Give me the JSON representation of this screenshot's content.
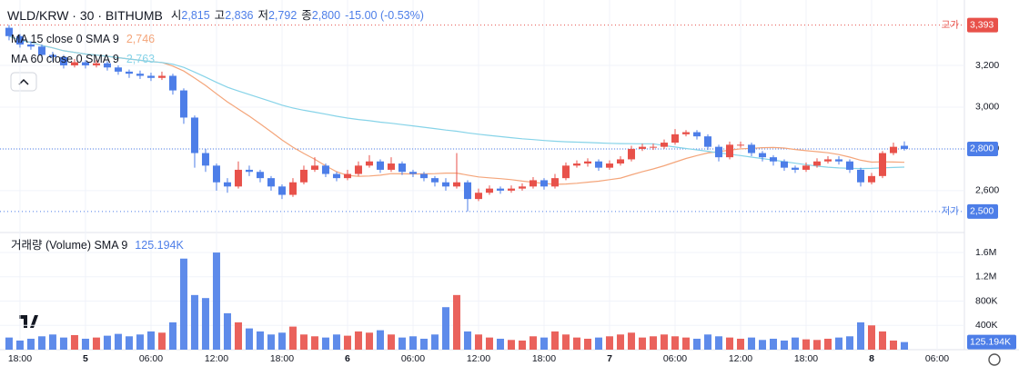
{
  "chart_data": {
    "type": "candlestick",
    "title": "WLD/KRW · 30 · BITHUMB",
    "header": [
      {
        "label": "시",
        "value": "2,815"
      },
      {
        "label": "고",
        "value": "2,836"
      },
      {
        "label": "저",
        "value": "2,792"
      },
      {
        "label": "종",
        "value": "2,800"
      }
    ],
    "change": "-15.00 (-0.53%)",
    "up_color": "#e8514a",
    "down_color": "#4d7ee8",
    "candles": {
      "open": [
        3380,
        3340,
        3300,
        3290,
        3250,
        3240,
        3200,
        3215,
        3200,
        3210,
        3190,
        3170,
        3160,
        3150,
        3140,
        3150,
        3080,
        2950,
        2780,
        2720,
        2640,
        2620,
        2700,
        2690,
        2660,
        2620,
        2580,
        2640,
        2700,
        2720,
        2680,
        2660,
        2680,
        2720,
        2740,
        2700,
        2730,
        2690,
        2680,
        2660,
        2640,
        2620,
        2640,
        2560,
        2590,
        2610,
        2600,
        2610,
        2620,
        2650,
        2620,
        2660,
        2720,
        2730,
        2740,
        2710,
        2730,
        2750,
        2800,
        2810,
        2810,
        2830,
        2870,
        2880,
        2860,
        2810,
        2760,
        2820,
        2820,
        2780,
        2760,
        2740,
        2710,
        2700,
        2720,
        2740,
        2750,
        2740,
        2700,
        2640,
        2670,
        2780,
        2815
      ],
      "high": [
        3393,
        3350,
        3315,
        3300,
        3265,
        3250,
        3230,
        3225,
        3225,
        3220,
        3200,
        3180,
        3175,
        3165,
        3170,
        3160,
        3090,
        2960,
        2800,
        2730,
        2660,
        2740,
        2720,
        2700,
        2670,
        2630,
        2660,
        2720,
        2760,
        2730,
        2690,
        2700,
        2740,
        2770,
        2750,
        2760,
        2740,
        2700,
        2690,
        2670,
        2660,
        2780,
        2650,
        2610,
        2625,
        2620,
        2625,
        2635,
        2665,
        2660,
        2680,
        2735,
        2745,
        2755,
        2750,
        2745,
        2765,
        2815,
        2825,
        2825,
        2845,
        2895,
        2890,
        2890,
        2870,
        2820,
        2835,
        2835,
        2830,
        2790,
        2770,
        2750,
        2720,
        2735,
        2755,
        2765,
        2765,
        2750,
        2710,
        2685,
        2790,
        2830,
        2836
      ],
      "low": [
        3320,
        3285,
        3275,
        3235,
        3220,
        3185,
        3190,
        3185,
        3190,
        3175,
        3155,
        3140,
        3135,
        3125,
        3130,
        3060,
        2920,
        2710,
        2690,
        2600,
        2590,
        2610,
        2670,
        2640,
        2600,
        2560,
        2570,
        2630,
        2690,
        2665,
        2645,
        2650,
        2670,
        2710,
        2685,
        2690,
        2675,
        2665,
        2645,
        2620,
        2600,
        2610,
        2500,
        2550,
        2580,
        2585,
        2590,
        2600,
        2610,
        2605,
        2610,
        2650,
        2710,
        2715,
        2695,
        2700,
        2720,
        2740,
        2790,
        2795,
        2800,
        2820,
        2860,
        2845,
        2795,
        2740,
        2750,
        2805,
        2765,
        2740,
        2720,
        2695,
        2685,
        2690,
        2710,
        2730,
        2725,
        2685,
        2620,
        2630,
        2660,
        2770,
        2792
      ],
      "close": [
        3340,
        3300,
        3290,
        3250,
        3240,
        3200,
        3215,
        3200,
        3210,
        3190,
        3170,
        3160,
        3150,
        3140,
        3150,
        3080,
        2950,
        2780,
        2720,
        2640,
        2620,
        2700,
        2690,
        2660,
        2620,
        2580,
        2640,
        2700,
        2720,
        2680,
        2660,
        2680,
        2720,
        2740,
        2700,
        2730,
        2690,
        2680,
        2660,
        2640,
        2620,
        2640,
        2560,
        2590,
        2610,
        2600,
        2610,
        2620,
        2650,
        2620,
        2660,
        2720,
        2730,
        2740,
        2710,
        2730,
        2750,
        2800,
        2810,
        2810,
        2830,
        2870,
        2880,
        2860,
        2810,
        2760,
        2820,
        2820,
        2780,
        2760,
        2740,
        2710,
        2700,
        2720,
        2740,
        2750,
        2740,
        2700,
        2640,
        2670,
        2780,
        2810,
        2800
      ]
    },
    "ma": [
      {
        "name": "MA 15 close 0 SMA 9",
        "period": 15,
        "last": "2,746",
        "color": "#f4a57a"
      },
      {
        "name": "MA 60 close 0 SMA 9",
        "period": 60,
        "last": "2,763",
        "color": "#86d3e8"
      }
    ],
    "ylim": [
      2404,
      3513
    ],
    "yticks": [
      {
        "value": 3200,
        "label": "3,200"
      },
      {
        "value": 3000,
        "label": "3,000"
      },
      {
        "value": 2800,
        "label": "2,800"
      },
      {
        "value": 2600,
        "label": "2,600"
      }
    ],
    "high_line": {
      "label": "고가",
      "value": 3393,
      "value_label": "3,393"
    },
    "last_line": {
      "value": 2800,
      "value_label": "2,800"
    },
    "low_line": {
      "label": "저가",
      "value": 2500,
      "value_label": "2,500"
    },
    "volume": {
      "name": "거래량 (Volume) SMA 9",
      "last": "125.194K",
      "values": [
        200000,
        150000,
        180000,
        220000,
        250000,
        200000,
        240000,
        180000,
        200000,
        230000,
        260000,
        220000,
        250000,
        300000,
        280000,
        450000,
        1500000,
        900000,
        850000,
        1600000,
        600000,
        450000,
        350000,
        300000,
        250000,
        280000,
        380000,
        250000,
        220000,
        200000,
        250000,
        230000,
        300000,
        280000,
        320000,
        250000,
        200000,
        220000,
        180000,
        250000,
        700000,
        900000,
        300000,
        250000,
        200000,
        180000,
        160000,
        150000,
        220000,
        200000,
        300000,
        250000,
        200000,
        180000,
        200000,
        220000,
        250000,
        280000,
        200000,
        220000,
        250000,
        220000,
        200000,
        180000,
        250000,
        220000,
        200000,
        180000,
        200000,
        160000,
        180000,
        150000,
        200000,
        170000,
        160000,
        180000,
        200000,
        220000,
        450000,
        400000,
        300000,
        150000,
        125194
      ],
      "ylim": [
        0,
        1900000
      ],
      "yticks": [
        {
          "value": 400000,
          "label": "400K"
        },
        {
          "value": 800000,
          "label": "800K"
        },
        {
          "value": 1200000,
          "label": "1.2M"
        },
        {
          "value": 1600000,
          "label": "1.6M"
        }
      ]
    },
    "xlim": [
      -0.83,
      87.5
    ],
    "xticks": [
      {
        "value": 1,
        "label": "18:00"
      },
      {
        "value": 7,
        "label": "5"
      },
      {
        "value": 13,
        "label": "06:00"
      },
      {
        "value": 19,
        "label": "12:00"
      },
      {
        "value": 25,
        "label": "18:00"
      },
      {
        "value": 31,
        "label": "6"
      },
      {
        "value": 37,
        "label": "06:00"
      },
      {
        "value": 43,
        "label": "12:00"
      },
      {
        "value": 49,
        "label": "18:00"
      },
      {
        "value": 55,
        "label": "7"
      },
      {
        "value": 61,
        "label": "06:00"
      },
      {
        "value": 67,
        "label": "12:00"
      },
      {
        "value": 73,
        "label": "18:00"
      },
      {
        "value": 79,
        "label": "8"
      },
      {
        "value": 85,
        "label": "06:00"
      }
    ]
  }
}
